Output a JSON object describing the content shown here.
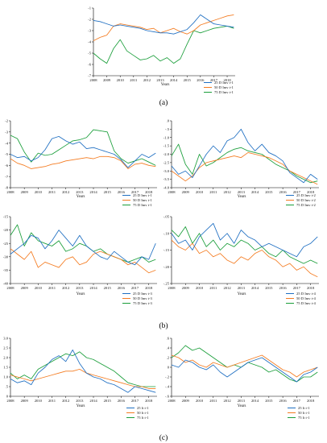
{
  "colors": {
    "s25": "#1f6fc2",
    "s50": "#f47b20",
    "s75": "#1a9e3a"
  },
  "panel_labels": [
    "(a)",
    "(b)",
    "(c)"
  ],
  "chart_data": [
    {
      "type": "line",
      "id": "a",
      "x": [
        2008,
        2008.5,
        2009,
        2009.5,
        2010,
        2010.5,
        2011,
        2011.5,
        2012,
        2012.5,
        2013,
        2013.5,
        2014,
        2014.5,
        2015,
        2015.5,
        2016,
        2016.5,
        2017,
        2017.5,
        2018,
        2018.5
      ],
      "xticks": [
        "2008",
        "2009",
        "2010",
        "2011",
        "2012",
        "2013",
        "2014",
        "2015",
        "2016",
        "2017",
        "2018"
      ],
      "ylim": [
        -7,
        -1
      ],
      "yticks": [
        "-1",
        "-2",
        "-3",
        "-4",
        "-5",
        "-6",
        "-7"
      ],
      "xlabel": "Years",
      "series": [
        {
          "name": "25 D Imv t-1",
          "color_key": "s25",
          "values": [
            -2.1,
            -2.2,
            -2.4,
            -2.6,
            -2.5,
            -2.6,
            -2.7,
            -2.8,
            -3.0,
            -3.1,
            -3.2,
            -3.2,
            -3.3,
            -3.1,
            -2.9,
            -2.3,
            -1.6,
            -2.0,
            -2.4,
            -2.5,
            -2.6,
            -2.7
          ]
        },
        {
          "name": "50 D Imv t-1",
          "color_key": "s50",
          "values": [
            -3.9,
            -3.6,
            -3.4,
            -2.6,
            -2.4,
            -2.5,
            -2.6,
            -2.7,
            -2.9,
            -2.8,
            -3.2,
            -3.0,
            -2.8,
            -3.1,
            -3.3,
            -3.0,
            -2.5,
            -2.3,
            -2.1,
            -1.9,
            -1.7,
            -1.6
          ]
        },
        {
          "name": "75 D Imv t-1",
          "color_key": "s75",
          "values": [
            -5.0,
            -5.5,
            -5.9,
            -4.6,
            -3.8,
            -4.8,
            -5.2,
            -5.6,
            -5.5,
            -5.2,
            -5.7,
            -5.4,
            -5.9,
            -5.5,
            -4.2,
            -3.0,
            -3.2,
            -3.0,
            -2.8,
            -2.7,
            -2.6,
            -2.8
          ]
        }
      ]
    },
    {
      "type": "line",
      "id": "b1",
      "x": [
        2008,
        2008.5,
        2009,
        2009.5,
        2010,
        2010.5,
        2011,
        2011.5,
        2012,
        2012.5,
        2013,
        2013.5,
        2014,
        2014.5,
        2015,
        2015.5,
        2016,
        2016.5,
        2017,
        2017.5,
        2018,
        2018.5
      ],
      "xticks": [
        "2008",
        "2009",
        "2010",
        "2011",
        "2012",
        "2013",
        "2014",
        "2015",
        "2016",
        "2017",
        "2018"
      ],
      "ylim": [
        -8,
        -2
      ],
      "yticks": [
        "-2",
        "-3",
        "-4",
        "-5",
        "-6",
        "-7",
        "-8"
      ],
      "xlabel": "Years",
      "series": [
        {
          "name": "25 D Imv t-1",
          "color_key": "s25",
          "values": [
            -5.0,
            -5.3,
            -5.2,
            -5.6,
            -5.3,
            -4.6,
            -3.6,
            -3.4,
            -3.8,
            -4.1,
            -3.9,
            -4.5,
            -4.4,
            -4.6,
            -4.8,
            -5.0,
            -5.5,
            -6.2,
            -5.6,
            -5.0,
            -5.3,
            -4.9
          ]
        },
        {
          "name": "50 D Imv t-1",
          "color_key": "s50",
          "values": [
            -5.4,
            -5.8,
            -6.0,
            -6.3,
            -6.2,
            -6.1,
            -5.9,
            -5.8,
            -5.6,
            -5.5,
            -5.4,
            -5.3,
            -5.4,
            -5.2,
            -5.2,
            -5.3,
            -5.6,
            -6.3,
            -5.9,
            -5.8,
            -6.0,
            -6.1
          ]
        },
        {
          "name": "75 D Imv t-1",
          "color_key": "s75",
          "values": [
            -3.3,
            -3.6,
            -4.8,
            -5.7,
            -4.9,
            -5.1,
            -5.0,
            -4.6,
            -4.2,
            -3.8,
            -3.7,
            -3.5,
            -2.8,
            -2.9,
            -3.0,
            -4.7,
            -5.4,
            -5.8,
            -5.6,
            -5.4,
            -5.7,
            -6.0
          ]
        }
      ]
    },
    {
      "type": "line",
      "id": "b2",
      "x": [
        2008,
        2008.5,
        2009,
        2009.5,
        2010,
        2010.5,
        2011,
        2011.5,
        2012,
        2012.5,
        2013,
        2013.5,
        2014,
        2014.5,
        2015,
        2015.5,
        2016,
        2016.5,
        2017,
        2017.5,
        2018,
        2018.5
      ],
      "xticks": [
        "2008",
        "2009",
        "2010",
        "2011",
        "2012",
        "2013",
        "2014",
        "2015",
        "2016",
        "2017",
        "2018"
      ],
      "ylim": [
        -4,
        0
      ],
      "yticks": [
        ".0",
        "-.5",
        "-1.0",
        "-1.5",
        "-2.0",
        "-2.5",
        "-3.0",
        "-3.5",
        "-4.0"
      ],
      "xlabel": "Years",
      "series": [
        {
          "name": "25 D Imv t-2",
          "color_key": "s25",
          "values": [
            -2.7,
            -3.2,
            -3.0,
            -3.4,
            -2.7,
            -2.0,
            -1.5,
            -1.9,
            -1.2,
            -1.0,
            -0.5,
            -1.3,
            -1.8,
            -1.4,
            -1.9,
            -2.1,
            -2.4,
            -3.1,
            -3.4,
            -3.7,
            -3.2,
            -3.5
          ]
        },
        {
          "name": "50 D Imv t-2",
          "color_key": "s50",
          "values": [
            -3.0,
            -3.3,
            -3.6,
            -3.3,
            -2.8,
            -2.5,
            -2.4,
            -2.3,
            -2.2,
            -2.1,
            -2.2,
            -1.9,
            -2.0,
            -2.1,
            -2.2,
            -2.4,
            -2.6,
            -3.0,
            -3.2,
            -3.4,
            -3.6,
            -3.8
          ]
        },
        {
          "name": "75 D Imv t-2",
          "color_key": "s75",
          "values": [
            -2.1,
            -1.4,
            -2.6,
            -3.2,
            -2.0,
            -2.7,
            -2.5,
            -2.2,
            -1.9,
            -1.7,
            -1.6,
            -1.8,
            -1.9,
            -2.0,
            -2.3,
            -2.6,
            -2.8,
            -3.0,
            -3.3,
            -3.5,
            -3.7,
            -3.6
          ]
        }
      ]
    },
    {
      "type": "line",
      "id": "b3",
      "x": [
        2008,
        2008.5,
        2009,
        2009.5,
        2010,
        2010.5,
        2011,
        2011.5,
        2012,
        2012.5,
        2013,
        2013.5,
        2014,
        2014.5,
        2015,
        2015.5,
        2016,
        2016.5,
        2017,
        2017.5,
        2018,
        2018.5
      ],
      "xticks": [
        "2008",
        "2009",
        "2010",
        "2011",
        "2012",
        "2013",
        "2014",
        "2015",
        "2016",
        "2017",
        "2018"
      ],
      "ylim": [
        -40,
        -15
      ],
      "yticks": [
        "-15",
        "-20",
        "-25",
        "-30",
        "-35",
        "-40"
      ],
      "xlabel": "Years",
      "series": [
        {
          "name": "25 D Imv t-3",
          "color_key": "s25",
          "values": [
            -29,
            -27,
            -25,
            -22,
            -23,
            -27,
            -24,
            -20,
            -23,
            -26,
            -22,
            -26,
            -28,
            -30,
            -31,
            -28,
            -30,
            -32,
            -33,
            -30,
            -31,
            -25
          ]
        },
        {
          "name": "50 D Imv t-3",
          "color_key": "s50",
          "values": [
            -27,
            -29,
            -31,
            -28,
            -34,
            -32,
            -33,
            -34,
            -31,
            -30,
            -33,
            -32,
            -29,
            -28,
            -29,
            -30,
            -31,
            -33,
            -32,
            -34,
            -36,
            -35
          ]
        },
        {
          "name": "75 D Imv t-3",
          "color_key": "s75",
          "values": [
            -22,
            -18,
            -26,
            -21,
            -24,
            -25,
            -26,
            -24,
            -28,
            -27,
            -25,
            -26,
            -28,
            -27,
            -29,
            -30,
            -31,
            -32,
            -31,
            -30,
            -32,
            -31
          ]
        }
      ]
    },
    {
      "type": "line",
      "id": "b4",
      "x": [
        2008,
        2008.5,
        2009,
        2009.5,
        2010,
        2010.5,
        2011,
        2011.5,
        2012,
        2012.5,
        2013,
        2013.5,
        2014,
        2014.5,
        2015,
        2015.5,
        2016,
        2016.5,
        2017,
        2017.5,
        2018,
        2018.5
      ],
      "xticks": [
        "2008",
        "2009",
        "2010",
        "2011",
        "2012",
        "2013",
        "2014",
        "2015",
        "2016",
        "2017",
        "2018"
      ],
      "ylim": [
        -0.25,
        -0.05
      ],
      "yticks": [
        "-.05",
        "-.10",
        "-.15",
        "-.20",
        "-.25"
      ],
      "xlabel": "Years",
      "series": [
        {
          "name": "25 D Imv t-4",
          "color_key": "s25",
          "values": [
            -0.1,
            -0.13,
            -0.12,
            -0.15,
            -0.11,
            -0.09,
            -0.07,
            -0.12,
            -0.1,
            -0.13,
            -0.09,
            -0.11,
            -0.12,
            -0.14,
            -0.13,
            -0.14,
            -0.15,
            -0.16,
            -0.17,
            -0.14,
            -0.13,
            -0.11
          ]
        },
        {
          "name": "50 D Imv t-4",
          "color_key": "s50",
          "values": [
            -0.12,
            -0.14,
            -0.15,
            -0.13,
            -0.16,
            -0.15,
            -0.17,
            -0.16,
            -0.18,
            -0.19,
            -0.17,
            -0.18,
            -0.16,
            -0.15,
            -0.17,
            -0.18,
            -0.2,
            -0.19,
            -0.21,
            -0.2,
            -0.22,
            -0.23
          ]
        },
        {
          "name": "75 D Imv t-4",
          "color_key": "s75",
          "values": [
            -0.09,
            -0.11,
            -0.08,
            -0.13,
            -0.1,
            -0.14,
            -0.12,
            -0.15,
            -0.13,
            -0.14,
            -0.12,
            -0.13,
            -0.15,
            -0.14,
            -0.16,
            -0.17,
            -0.15,
            -0.17,
            -0.18,
            -0.19,
            -0.18,
            -0.19
          ]
        }
      ]
    },
    {
      "type": "line",
      "id": "c1",
      "x": [
        2008,
        2008.5,
        2009,
        2009.5,
        2010,
        2010.5,
        2011,
        2011.5,
        2012,
        2012.5,
        2013,
        2013.5,
        2014,
        2014.5,
        2015,
        2015.5,
        2016,
        2016.5,
        2017,
        2017.5,
        2018,
        2018.5
      ],
      "xticks": [
        "2008",
        "2009",
        "2010",
        "2011",
        "2012",
        "2013",
        "2014",
        "2015",
        "2016",
        "2017",
        "2018"
      ],
      "ylim": [
        0,
        3
      ],
      "yticks": [
        "3.0",
        "2.5",
        "2.0",
        "1.5",
        "1.0",
        ".5",
        "0"
      ],
      "xlabel": "Years",
      "series": [
        {
          "name": "25 lt t-1",
          "color_key": "s25",
          "values": [
            0.9,
            0.7,
            0.8,
            0.6,
            1.2,
            1.5,
            1.9,
            2.1,
            1.8,
            2.4,
            1.7,
            1.2,
            1.0,
            0.9,
            0.7,
            0.6,
            0.4,
            0.2,
            0.5,
            0.4,
            0.3,
            0.2
          ]
        },
        {
          "name": "50 lt t-1",
          "color_key": "s50",
          "values": [
            1.1,
            1.0,
            0.9,
            0.8,
            0.9,
            1.0,
            1.1,
            1.2,
            1.3,
            1.3,
            1.4,
            1.2,
            1.1,
            1.0,
            0.9,
            0.8,
            0.7,
            0.6,
            0.5,
            0.5,
            0.4,
            0.4
          ]
        },
        {
          "name": "75 lt t-1",
          "color_key": "s75",
          "values": [
            1.2,
            0.9,
            1.1,
            0.9,
            1.4,
            1.6,
            1.8,
            2.0,
            2.2,
            2.1,
            2.3,
            2.0,
            1.9,
            1.7,
            1.5,
            1.3,
            1.0,
            0.7,
            0.6,
            0.5,
            0.5,
            0.5
          ]
        }
      ]
    },
    {
      "type": "line",
      "id": "c2",
      "x": [
        2008,
        2008.5,
        2009,
        2009.5,
        2010,
        2010.5,
        2011,
        2011.5,
        2012,
        2012.5,
        2013,
        2013.5,
        2014,
        2014.5,
        2015,
        2015.5,
        2016,
        2016.5,
        2017,
        2017.5,
        2018,
        2018.5
      ],
      "xticks": [
        "2008",
        "2009",
        "2010",
        "2011",
        "2012",
        "2013",
        "2014",
        "2015",
        "2016",
        "2017",
        "2018"
      ],
      "ylim": [
        -0.6,
        0.6
      ],
      "yticks": [
        ".6",
        ".4",
        ".2",
        "0",
        "-.2",
        "-.4",
        "-.6"
      ],
      "xlabel": "Years",
      "series": [
        {
          "name": "25 lt t-1",
          "color_key": "s25",
          "values": [
            0.05,
            0.0,
            0.15,
            0.1,
            0.0,
            -0.05,
            0.05,
            -0.1,
            -0.2,
            -0.1,
            0.0,
            0.1,
            0.15,
            0.2,
            0.1,
            0.0,
            -0.1,
            -0.2,
            -0.3,
            -0.15,
            -0.1,
            0.0
          ]
        },
        {
          "name": "50 lt t-1",
          "color_key": "s50",
          "values": [
            0.25,
            0.2,
            0.1,
            0.15,
            0.05,
            0.0,
            0.1,
            0.05,
            0.0,
            0.05,
            0.1,
            0.15,
            0.2,
            0.25,
            0.15,
            0.05,
            -0.05,
            -0.1,
            -0.2,
            -0.1,
            -0.05,
            0.0
          ]
        },
        {
          "name": "75 lt t-1",
          "color_key": "s75",
          "values": [
            0.2,
            0.3,
            0.45,
            0.35,
            0.4,
            0.3,
            0.2,
            0.1,
            0.0,
            0.05,
            0.0,
            0.1,
            0.05,
            0.0,
            -0.1,
            -0.05,
            -0.15,
            -0.25,
            -0.3,
            -0.2,
            -0.2,
            -0.1
          ]
        }
      ]
    }
  ]
}
